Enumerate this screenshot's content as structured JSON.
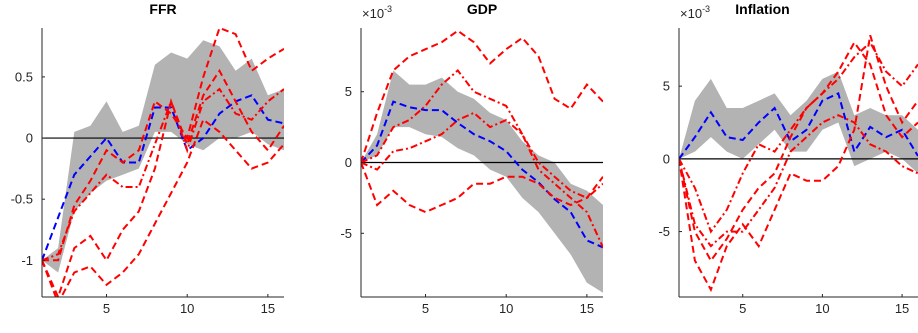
{
  "colors": {
    "band": "#b3b3b3",
    "median": "#0000ff",
    "alt": "#ff0000",
    "zero_line": "#000000",
    "axis": "#262626"
  },
  "chart_data": [
    {
      "type": "line",
      "title": "FFR",
      "exponent_label": "",
      "x": [
        1,
        2,
        3,
        4,
        5,
        6,
        7,
        8,
        9,
        10,
        11,
        12,
        13,
        14,
        15,
        16
      ],
      "xlim": [
        1,
        16
      ],
      "ylim": [
        -1.3,
        0.9
      ],
      "xticks": [
        5,
        10,
        15
      ],
      "xtick_labels": [
        "5",
        "10",
        "15"
      ],
      "yticks": [
        -1,
        -0.5,
        0,
        0.5
      ],
      "ytick_labels": [
        "-1",
        "-0.5",
        "0",
        "0.5"
      ],
      "zero_line": true,
      "band": {
        "lower": [
          -1.0,
          -1.1,
          -0.6,
          -0.45,
          -0.35,
          -0.3,
          -0.25,
          0.05,
          0.05,
          -0.05,
          -0.1,
          0.0,
          0.0,
          0.05,
          -0.05,
          -0.1
        ],
        "upper": [
          -1.0,
          -0.9,
          0.05,
          0.1,
          0.3,
          0.05,
          0.1,
          0.6,
          0.7,
          0.65,
          0.8,
          0.75,
          0.55,
          0.65,
          0.35,
          0.4
        ]
      },
      "series": [
        {
          "style": "median",
          "values": [
            -1.0,
            -0.65,
            -0.3,
            -0.15,
            0.0,
            -0.2,
            -0.2,
            0.25,
            0.25,
            -0.1,
            0.0,
            0.2,
            0.3,
            0.35,
            0.15,
            0.12
          ]
        },
        {
          "style": "dash",
          "values": [
            -1.0,
            -1.0,
            -0.55,
            -0.35,
            -0.1,
            -0.2,
            -0.1,
            0.3,
            0.2,
            0.0,
            0.5,
            0.9,
            0.85,
            0.55,
            0.65,
            0.73
          ]
        },
        {
          "style": "dash",
          "values": [
            -1.0,
            -1.3,
            -0.9,
            -0.8,
            -1.0,
            -0.75,
            -0.6,
            -0.25,
            0.3,
            -0.05,
            0.35,
            0.55,
            0.3,
            0.05,
            -0.1,
            0.1
          ]
        },
        {
          "style": "dashdot",
          "values": [
            -1.0,
            -0.95,
            -0.6,
            -0.45,
            -0.3,
            -0.4,
            -0.4,
            -0.05,
            0.3,
            -0.1,
            0.3,
            0.4,
            0.2,
            0.15,
            0.3,
            0.4
          ]
        },
        {
          "style": "dash",
          "values": [
            -1.0,
            -1.35,
            -1.1,
            -1.05,
            -1.2,
            -1.1,
            -0.95,
            -0.7,
            -0.45,
            -0.2,
            0.15,
            0.05,
            -0.1,
            -0.25,
            -0.2,
            -0.05
          ]
        }
      ]
    },
    {
      "type": "line",
      "title": "GDP",
      "exponent_label": "×10",
      "exponent_power": "-3",
      "x": [
        1,
        2,
        3,
        4,
        5,
        6,
        7,
        8,
        9,
        10,
        11,
        12,
        13,
        14,
        15,
        16
      ],
      "xlim": [
        1,
        16
      ],
      "ylim": [
        -9.5,
        9.5
      ],
      "xticks": [
        5,
        10,
        15
      ],
      "xtick_labels": [
        "5",
        "10",
        "15"
      ],
      "yticks": [
        -5,
        0,
        5
      ],
      "ytick_labels": [
        "-5",
        "0",
        "5"
      ],
      "zero_line": true,
      "band": {
        "lower": [
          0.0,
          0.5,
          2.5,
          2.5,
          2.0,
          1.8,
          1.0,
          0.5,
          -0.5,
          -1.0,
          -2.5,
          -3.5,
          -5.0,
          -6.5,
          -8.5,
          -9.2
        ],
        "upper": [
          0.0,
          2.0,
          6.5,
          5.5,
          5.5,
          6.0,
          5.0,
          4.5,
          3.5,
          3.0,
          1.5,
          0.5,
          0.0,
          -1.5,
          -2.0,
          -3.0
        ]
      },
      "series": [
        {
          "style": "median",
          "values": [
            0.0,
            1.2,
            4.3,
            3.9,
            3.7,
            3.7,
            2.8,
            2.0,
            1.5,
            0.8,
            -0.5,
            -1.4,
            -2.6,
            -3.5,
            -5.5,
            -6.0
          ]
        },
        {
          "style": "dash",
          "values": [
            0.0,
            3.5,
            6.5,
            7.5,
            8.0,
            8.5,
            9.3,
            8.5,
            7.0,
            8.0,
            8.8,
            7.5,
            4.5,
            3.8,
            5.5,
            4.3
          ]
        },
        {
          "style": "dashdot",
          "values": [
            0.0,
            -0.5,
            0.8,
            1.0,
            1.5,
            2.0,
            3.0,
            3.5,
            2.5,
            3.0,
            2.0,
            -0.5,
            -1.5,
            -2.5,
            -3.5,
            -6.0
          ]
        },
        {
          "style": "dash",
          "values": [
            0.0,
            -3.0,
            -2.0,
            -3.0,
            -3.5,
            -3.0,
            -2.5,
            -1.5,
            -1.5,
            -1.0,
            -1.0,
            -1.5,
            -2.5,
            -3.0,
            -2.5,
            -1.0
          ]
        },
        {
          "style": "dashdot",
          "values": [
            0.0,
            0.5,
            2.5,
            3.0,
            4.0,
            5.5,
            6.5,
            5.0,
            4.5,
            4.0,
            2.0,
            0.0,
            -1.0,
            -2.0,
            -2.5,
            -1.5
          ]
        }
      ]
    },
    {
      "type": "line",
      "title": "Inflation",
      "exponent_label": "×10",
      "exponent_power": "-3",
      "x": [
        1,
        2,
        3,
        4,
        5,
        6,
        7,
        8,
        9,
        10,
        11,
        12,
        13,
        14,
        15,
        16
      ],
      "xlim": [
        1,
        16
      ],
      "ylim": [
        -9.5,
        9.0
      ],
      "xticks": [
        5,
        10,
        15
      ],
      "xtick_labels": [
        "5",
        "10",
        "15"
      ],
      "yticks": [
        -5,
        0,
        5
      ],
      "ytick_labels": [
        "-5",
        "0",
        "5"
      ],
      "zero_line": true,
      "band": {
        "lower": [
          0.0,
          0.5,
          1.5,
          0.5,
          0.0,
          1.0,
          2.0,
          0.5,
          0.5,
          2.0,
          2.5,
          -0.5,
          0.0,
          0.5,
          0.0,
          -1.0
        ],
        "upper": [
          0.0,
          4.0,
          5.5,
          3.5,
          3.5,
          4.0,
          4.5,
          3.0,
          4.0,
          5.5,
          6.0,
          3.0,
          3.5,
          3.0,
          3.0,
          2.0
        ]
      },
      "series": [
        {
          "style": "median",
          "values": [
            0.0,
            1.5,
            3.2,
            1.5,
            1.3,
            2.5,
            3.5,
            1.2,
            2.0,
            4.0,
            4.5,
            0.5,
            2.2,
            1.5,
            2.0,
            0.2
          ]
        },
        {
          "style": "dashdot",
          "values": [
            0.0,
            -2.0,
            -5.0,
            -3.5,
            -1.0,
            1.0,
            0.5,
            2.0,
            3.5,
            4.5,
            5.5,
            7.0,
            8.0,
            6.0,
            5.0,
            6.5
          ]
        },
        {
          "style": "dash",
          "values": [
            0.0,
            -5.0,
            -7.0,
            -5.5,
            -3.5,
            -2.0,
            -1.0,
            1.5,
            3.5,
            4.5,
            6.0,
            8.0,
            6.5,
            3.0,
            1.5,
            2.5
          ]
        },
        {
          "style": "dashdot",
          "values": [
            0.0,
            -4.5,
            -6.0,
            -5.0,
            -5.0,
            -3.5,
            -2.0,
            0.5,
            1.5,
            2.5,
            3.0,
            2.5,
            1.0,
            0.5,
            -0.5,
            -1.0
          ]
        },
        {
          "style": "dash",
          "values": [
            0.0,
            -7.0,
            -9.0,
            -6.0,
            -4.5,
            -6.0,
            -3.5,
            -1.0,
            -1.5,
            -1.5,
            -0.5,
            2.0,
            8.5,
            5.0,
            2.5,
            4.0
          ]
        }
      ]
    }
  ]
}
